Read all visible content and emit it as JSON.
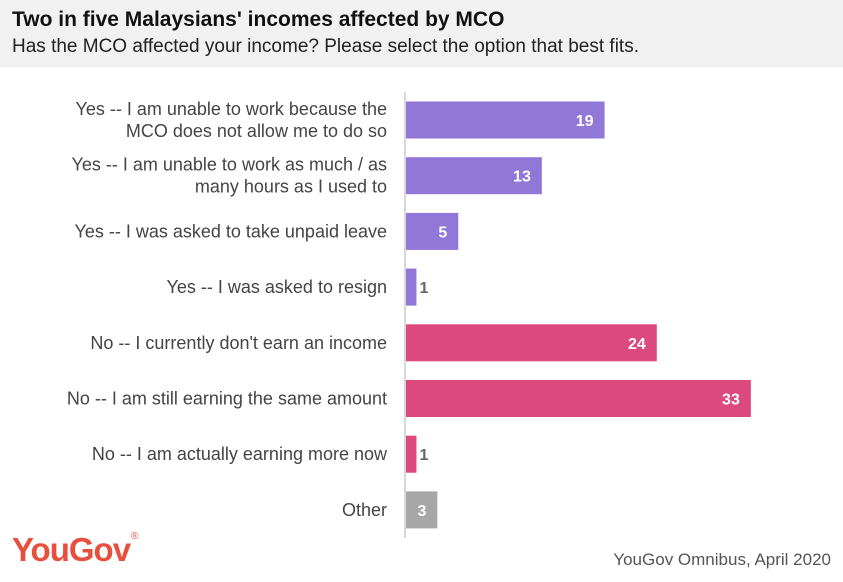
{
  "header": {
    "title": "Two in five Malaysians' incomes affected by MCO",
    "subtitle": "Has the MCO affected your income? Please select the option that best fits."
  },
  "footer": {
    "logo_text": "YouGov",
    "logo_mark": "®",
    "source": "YouGov Omnibus, April 2020"
  },
  "colors": {
    "purple": "#9177d8",
    "pink": "#dc4a7d",
    "grey": "#a7a7a7",
    "axis": "#cccccc",
    "label_inside": "#ffffff",
    "label_outside": "#666666",
    "logo": "#e5503f"
  },
  "chart_data": {
    "type": "bar",
    "orientation": "horizontal",
    "title": "Two in five Malaysians' incomes affected by MCO",
    "subtitle": "Has the MCO affected your income? Please select the option that best fits.",
    "categories": [
      [
        "Yes -- I am unable to work because the",
        "MCO does not allow me to do so"
      ],
      [
        "Yes -- I am unable to work as much / as",
        "many hours as I used to"
      ],
      [
        "Yes -- I was asked to take unpaid leave"
      ],
      [
        "Yes -- I was asked to resign"
      ],
      [
        "No -- I currently don't earn an income"
      ],
      [
        "No -- I am still earning the same amount"
      ],
      [
        "No -- I am actually earning more now"
      ],
      [
        "Other"
      ]
    ],
    "values": [
      19,
      13,
      5,
      1,
      24,
      33,
      1,
      3
    ],
    "groups": [
      "purple",
      "purple",
      "purple",
      "purple",
      "pink",
      "pink",
      "pink",
      "grey"
    ],
    "xlim": [
      0,
      35
    ],
    "grid": false,
    "legend": "none"
  }
}
